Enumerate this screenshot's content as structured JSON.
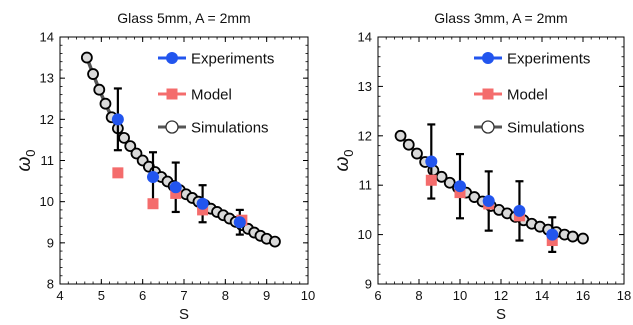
{
  "chart_data": [
    {
      "type": "scatter",
      "title": "Glass 5mm, A = 2mm",
      "xlabel": "S",
      "ylabel": "ω",
      "ylabel_sub": "0",
      "xlim": [
        4,
        10
      ],
      "ylim": [
        8,
        14
      ],
      "xticks": [
        "4",
        "5",
        "6",
        "7",
        "8",
        "9",
        "10"
      ],
      "yticks": [
        "8",
        "9",
        "10",
        "11",
        "12",
        "13",
        "14"
      ],
      "legend": {
        "position": "top-right",
        "items": [
          "Experiments",
          "Model",
          "Simulations"
        ]
      },
      "series": [
        {
          "name": "Simulations",
          "kind": "line-marker",
          "color": "#555555",
          "x": [
            4.65,
            4.8,
            4.95,
            5.1,
            5.25,
            5.4,
            5.55,
            5.7,
            5.85,
            6.0,
            6.15,
            6.3,
            6.45,
            6.6,
            6.75,
            6.9,
            7.05,
            7.2,
            7.35,
            7.5,
            7.65,
            7.8,
            7.95,
            8.1,
            8.25,
            8.4,
            8.55,
            8.7,
            8.85,
            9.0,
            9.2
          ],
          "y": [
            13.5,
            13.1,
            12.72,
            12.38,
            12.05,
            11.78,
            11.55,
            11.35,
            11.17,
            11.0,
            10.85,
            10.72,
            10.6,
            10.49,
            10.38,
            10.28,
            10.18,
            10.09,
            10.0,
            9.92,
            9.83,
            9.75,
            9.67,
            9.59,
            9.51,
            9.43,
            9.34,
            9.25,
            9.17,
            9.1,
            9.03
          ]
        },
        {
          "name": "Experiments",
          "kind": "marker-errorbar",
          "color": "#2255ee",
          "x": [
            5.4,
            6.25,
            6.8,
            7.45,
            8.35
          ],
          "y": [
            12.0,
            10.6,
            10.35,
            9.95,
            9.5
          ],
          "err": [
            0.75,
            0.6,
            0.6,
            0.45,
            0.3
          ]
        },
        {
          "name": "Model",
          "kind": "marker",
          "color": "#f46c6c",
          "x": [
            5.4,
            6.25,
            6.8,
            7.45,
            8.4
          ],
          "y": [
            10.7,
            9.95,
            10.2,
            9.8,
            9.55
          ]
        }
      ]
    },
    {
      "type": "scatter",
      "title": "Glass 3mm, A = 2mm",
      "xlabel": "S",
      "ylabel": "ω",
      "ylabel_sub": "0",
      "xlim": [
        6,
        18
      ],
      "ylim": [
        9,
        14
      ],
      "xticks": [
        "6",
        "8",
        "10",
        "12",
        "14",
        "16",
        "18"
      ],
      "yticks": [
        "9",
        "10",
        "11",
        "12",
        "13",
        "14"
      ],
      "legend": {
        "position": "top-right",
        "items": [
          "Experiments",
          "Model",
          "Simulations"
        ]
      },
      "series": [
        {
          "name": "Simulations",
          "kind": "line-marker",
          "color": "#555555",
          "x": [
            7.1,
            7.5,
            7.9,
            8.3,
            8.7,
            9.1,
            9.5,
            9.9,
            10.3,
            10.7,
            11.1,
            11.5,
            11.9,
            12.3,
            12.7,
            13.1,
            13.5,
            13.9,
            14.3,
            14.7,
            15.1,
            15.5,
            16.0
          ],
          "y": [
            12.0,
            11.82,
            11.64,
            11.47,
            11.3,
            11.17,
            11.05,
            10.95,
            10.85,
            10.76,
            10.67,
            10.58,
            10.5,
            10.43,
            10.36,
            10.29,
            10.22,
            10.16,
            10.1,
            10.05,
            10.0,
            9.96,
            9.92
          ]
        },
        {
          "name": "Experiments",
          "kind": "marker-errorbar",
          "color": "#2255ee",
          "x": [
            8.6,
            10.0,
            11.4,
            12.9,
            14.5
          ],
          "y": [
            11.48,
            10.98,
            10.68,
            10.48,
            10.0
          ],
          "err": [
            0.75,
            0.65,
            0.6,
            0.6,
            0.35
          ]
        },
        {
          "name": "Model",
          "kind": "marker",
          "color": "#f46c6c",
          "x": [
            8.6,
            10.0,
            11.4,
            12.9,
            14.5
          ],
          "y": [
            11.1,
            10.85,
            10.62,
            10.38,
            9.88
          ]
        }
      ]
    }
  ]
}
